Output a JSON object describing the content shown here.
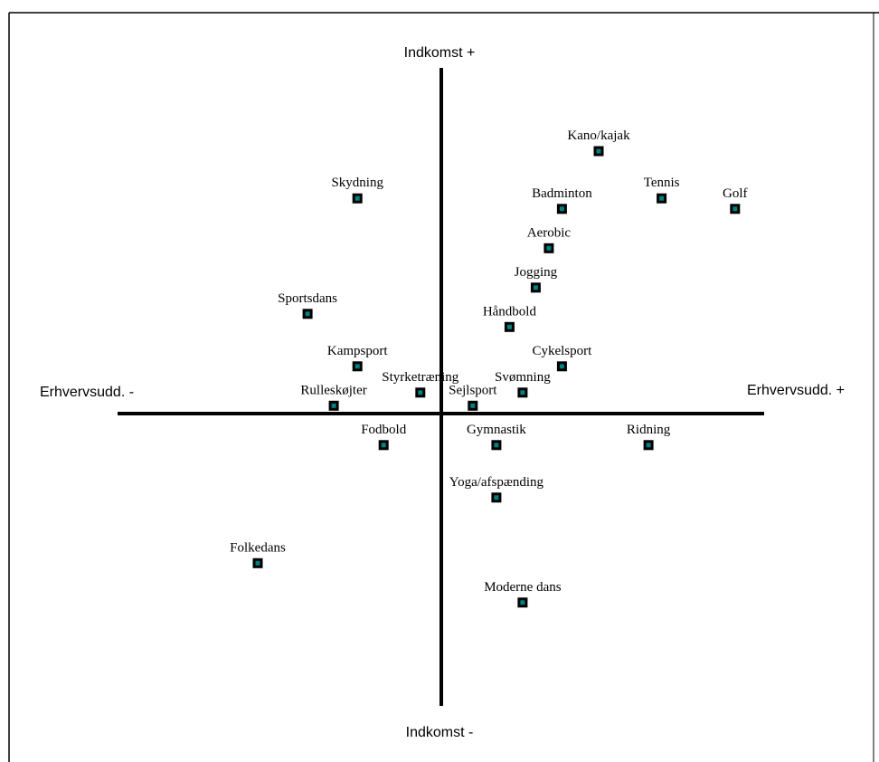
{
  "chart_data": {
    "type": "scatter",
    "title": "",
    "axis_labels": {
      "y_positive": "Indkomst +",
      "y_negative": "Indkomst -",
      "x_negative": "Erhvervsudd. -",
      "x_positive": "Erhvervsudd. +"
    },
    "xlim": [
      -12,
      12
    ],
    "ylim": [
      -11,
      13
    ],
    "grid": false,
    "legend": "none",
    "colors": {
      "marker_fill": "#008080",
      "marker_border": "#000000",
      "axis": "#000000"
    },
    "points": [
      {
        "label": "Kano/kajak",
        "x": 6,
        "y": 10
      },
      {
        "label": "Skydning",
        "x": -3.2,
        "y": 8.2
      },
      {
        "label": "Badminton",
        "x": 4.6,
        "y": 7.8
      },
      {
        "label": "Tennis",
        "x": 8.4,
        "y": 8.2
      },
      {
        "label": "Golf",
        "x": 11.2,
        "y": 7.8
      },
      {
        "label": "Aerobic",
        "x": 4.1,
        "y": 6.3
      },
      {
        "label": "Jogging",
        "x": 3.6,
        "y": 4.8
      },
      {
        "label": "Sportsdans",
        "x": -5.1,
        "y": 3.8
      },
      {
        "label": "Håndbold",
        "x": 2.6,
        "y": 3.3
      },
      {
        "label": "Kampsport",
        "x": -3.2,
        "y": 1.8
      },
      {
        "label": "Cykelsport",
        "x": 4.6,
        "y": 1.8
      },
      {
        "label": "Styrketræning",
        "x": -0.8,
        "y": 0.8
      },
      {
        "label": "Svømning",
        "x": 3.1,
        "y": 0.8
      },
      {
        "label": "Rulleskøjter",
        "x": -4.1,
        "y": 0.3
      },
      {
        "label": "Sejlsport",
        "x": 1.2,
        "y": 0.3
      },
      {
        "label": "Fodbold",
        "x": -2.2,
        "y": -1.2
      },
      {
        "label": "Gymnastik",
        "x": 2.1,
        "y": -1.2
      },
      {
        "label": "Ridning",
        "x": 7.9,
        "y": -1.2
      },
      {
        "label": "Yoga/afspænding",
        "x": 2.1,
        "y": -3.2
      },
      {
        "label": "Folkedans",
        "x": -7,
        "y": -5.7
      },
      {
        "label": "Moderne dans",
        "x": 3.1,
        "y": -7.2
      }
    ]
  }
}
